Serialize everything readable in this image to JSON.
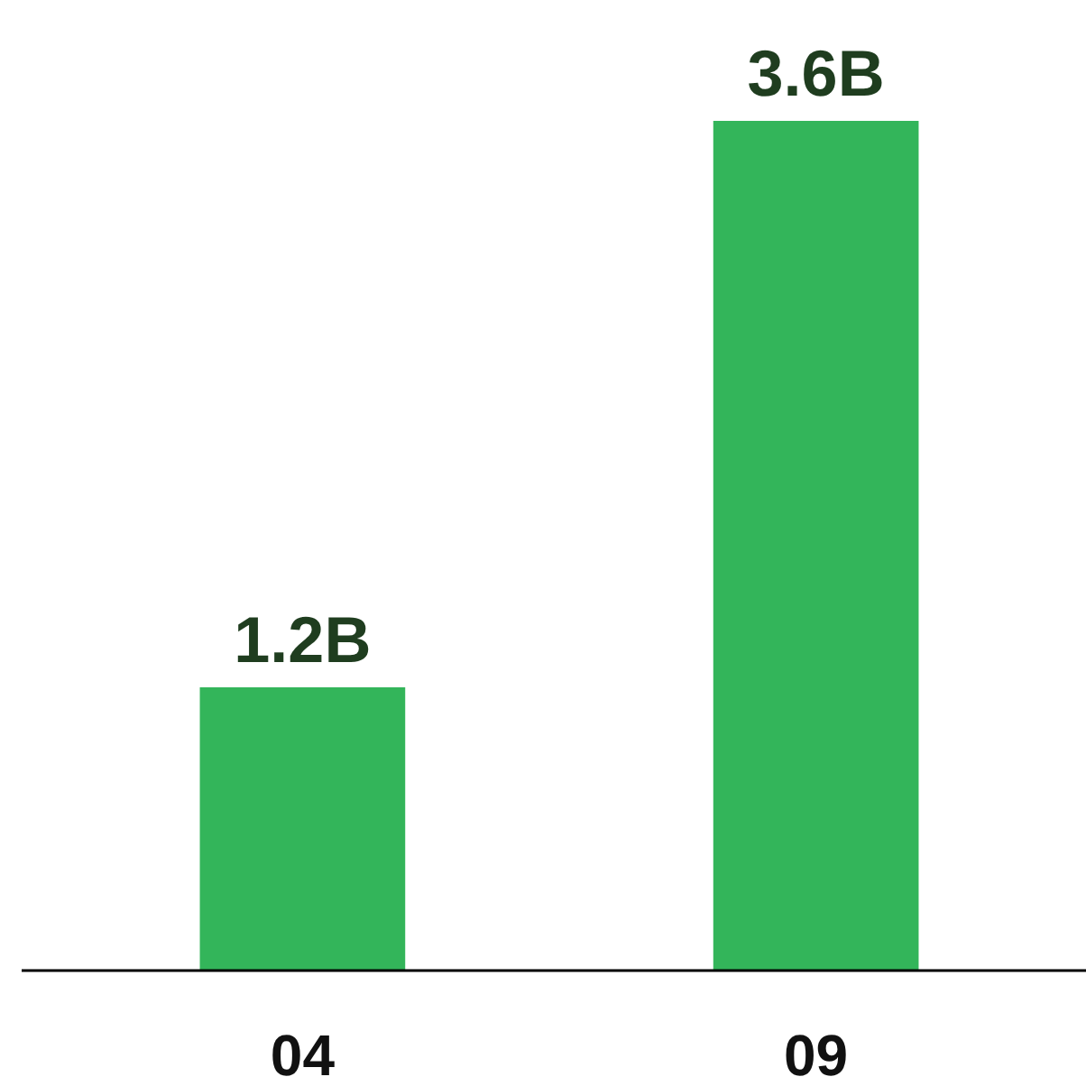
{
  "chart_data": {
    "type": "bar",
    "categories": [
      "04",
      "09"
    ],
    "values": [
      1.2,
      3.6
    ],
    "color": "#33b55a",
    "value_labels": [
      "1.2B",
      "3.6B"
    ]
  }
}
